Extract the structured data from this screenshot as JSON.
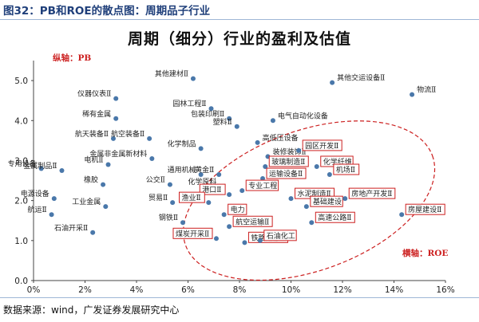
{
  "header": {
    "text": "图32：PB和ROE的散点图：周期品子行业"
  },
  "source": {
    "text": "数据来源：wind，广发证券发展研究中心"
  },
  "colors": {
    "point": "#4a78aa",
    "highlight": "#cc1f1f",
    "header": "#1f3f7a"
  },
  "chart_data": {
    "type": "scatter",
    "title": "周期（细分）行业的盈利及估值",
    "ylabel": "纵轴：PB",
    "xlabel": "横轴：ROE",
    "x_unit": "%",
    "xlim": [
      0,
      16
    ],
    "ylim": [
      0,
      5.5
    ],
    "xticks": [
      "0%",
      "2%",
      "4%",
      "6%",
      "8%",
      "10%",
      "12%",
      "14%",
      "16%"
    ],
    "yticks": [
      "0.0",
      "1.0",
      "2.0",
      "3.0",
      "4.0",
      "5.0"
    ],
    "grid": false,
    "points": [
      {
        "label": "专用设备",
        "x": 0.3,
        "y": 2.8
      },
      {
        "label": "金属制品Ⅱ",
        "x": 1.1,
        "y": 2.75
      },
      {
        "label": "电源设备",
        "x": 0.8,
        "y": 2.05
      },
      {
        "label": "航运Ⅱ",
        "x": 0.7,
        "y": 1.65
      },
      {
        "label": "电机Ⅱ",
        "x": 2.9,
        "y": 2.9
      },
      {
        "label": "航天装备Ⅱ",
        "x": 3.1,
        "y": 3.55
      },
      {
        "label": "稀有金属",
        "x": 3.2,
        "y": 4.05
      },
      {
        "label": "仪器仪表Ⅱ",
        "x": 3.2,
        "y": 4.55
      },
      {
        "label": "金属非金属新材料",
        "x": 4.6,
        "y": 3.05
      },
      {
        "label": "航空装备Ⅱ",
        "x": 4.5,
        "y": 3.55
      },
      {
        "label": "橡胶",
        "x": 2.7,
        "y": 2.4
      },
      {
        "label": "工业金属",
        "x": 2.8,
        "y": 1.85
      },
      {
        "label": "石油开采Ⅱ",
        "x": 2.3,
        "y": 1.2
      },
      {
        "label": "公交Ⅱ",
        "x": 5.3,
        "y": 2.4
      },
      {
        "label": "其他建材Ⅱ",
        "x": 6.2,
        "y": 5.05
      },
      {
        "label": "园林工程Ⅱ",
        "x": 6.9,
        "y": 4.3
      },
      {
        "label": "包装印刷Ⅱ",
        "x": 7.6,
        "y": 4.05
      },
      {
        "label": "化学制品",
        "x": 6.5,
        "y": 3.3
      },
      {
        "label": "通用机械",
        "x": 6.5,
        "y": 2.65
      },
      {
        "label": "黄金Ⅱ",
        "x": 7.2,
        "y": 2.65
      },
      {
        "label": "化学原料",
        "x": 7.3,
        "y": 2.35
      },
      {
        "label": "贸易Ⅱ",
        "x": 5.4,
        "y": 1.95
      },
      {
        "label": "钢铁Ⅱ",
        "x": 5.8,
        "y": 1.45
      },
      {
        "label": "其他交运设备Ⅱ",
        "x": 11.6,
        "y": 4.95
      },
      {
        "label": "物流Ⅱ",
        "x": 14.7,
        "y": 4.65
      },
      {
        "label": "电气自动化设备",
        "x": 9.3,
        "y": 4.0
      },
      {
        "label": "塑料Ⅱ",
        "x": 7.9,
        "y": 3.85
      },
      {
        "label": "高低压设备",
        "x": 8.7,
        "y": 3.45
      },
      {
        "label": "装修装饰Ⅱ",
        "x": 9.1,
        "y": 3.1
      }
    ],
    "highlighted_points": [
      {
        "label": "玻璃制造Ⅱ",
        "x": 9.0,
        "y": 2.85
      },
      {
        "label": "运输设备Ⅱ",
        "x": 8.9,
        "y": 2.55
      },
      {
        "label": "园区开发Ⅱ",
        "x": 10.3,
        "y": 3.25
      },
      {
        "label": "化学纤维",
        "x": 11.0,
        "y": 2.85
      },
      {
        "label": "机场Ⅱ",
        "x": 11.5,
        "y": 2.65
      },
      {
        "label": "专业工程",
        "x": 8.1,
        "y": 2.25
      },
      {
        "label": "港口Ⅱ",
        "x": 7.6,
        "y": 2.15
      },
      {
        "label": "水泥制造Ⅱ",
        "x": 10.0,
        "y": 2.05
      },
      {
        "label": "基础建设",
        "x": 10.6,
        "y": 1.85
      },
      {
        "label": "房地产开发Ⅱ",
        "x": 12.1,
        "y": 2.05
      },
      {
        "label": "房屋建设Ⅱ",
        "x": 14.3,
        "y": 1.65
      },
      {
        "label": "渔业Ⅱ",
        "x": 6.8,
        "y": 1.95
      },
      {
        "label": "电力",
        "x": 7.4,
        "y": 1.65
      },
      {
        "label": "航空运输Ⅱ",
        "x": 7.6,
        "y": 1.35
      },
      {
        "label": "高速公路Ⅱ",
        "x": 10.8,
        "y": 1.45
      },
      {
        "label": "煤炭开采Ⅱ",
        "x": 7.1,
        "y": 1.05
      },
      {
        "label": "铁路运输Ⅱ",
        "x": 8.2,
        "y": 0.95
      },
      {
        "label": "石油化工",
        "x": 8.8,
        "y": 1.0
      }
    ]
  }
}
